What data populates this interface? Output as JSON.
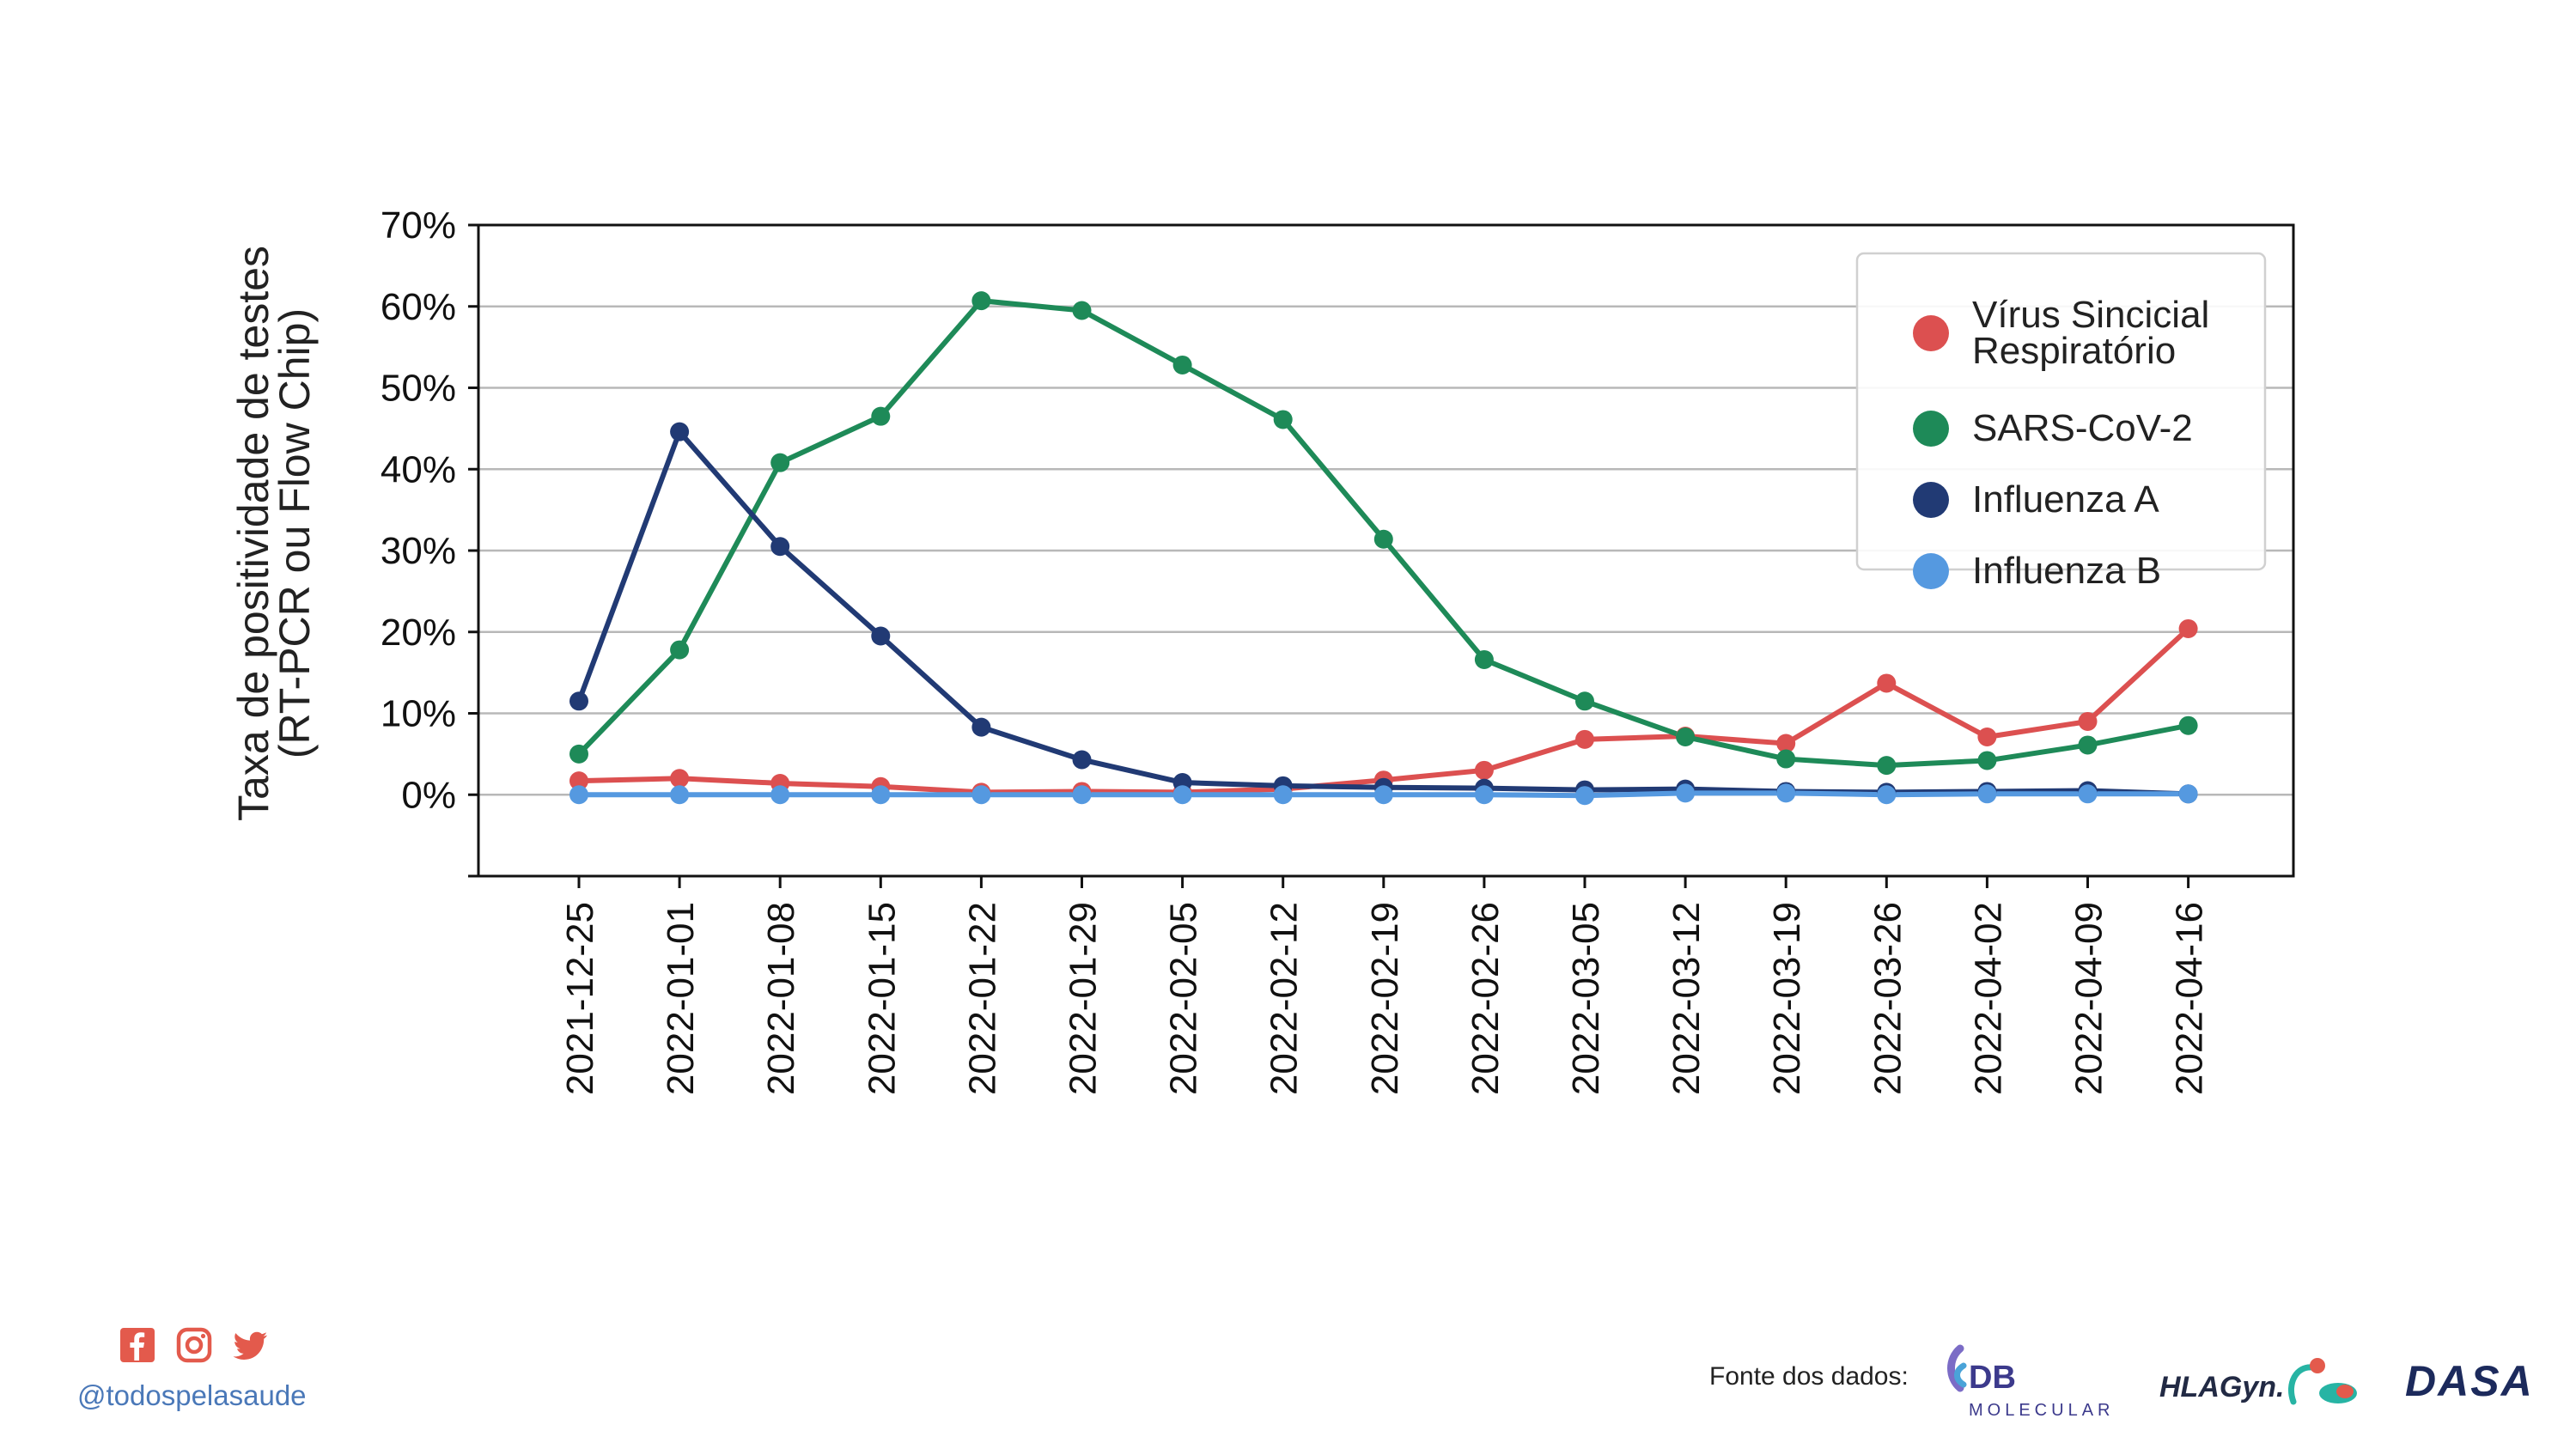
{
  "chart_data": {
    "type": "line",
    "title": "",
    "ylabel": [
      "Taxa de positividade de testes",
      "(RT-PCR ou Flow Chip)"
    ],
    "xlabel": "",
    "ylim": [
      -10,
      70
    ],
    "yticks": [
      0,
      10,
      20,
      30,
      40,
      50,
      60,
      70
    ],
    "ytick_labels": [
      "0%",
      "10%",
      "20%",
      "30%",
      "40%",
      "50%",
      "60%",
      "70%"
    ],
    "grid": "horizontal",
    "legend_position": "top-right",
    "categories": [
      "2021-12-25",
      "2022-01-01",
      "2022-01-08",
      "2022-01-15",
      "2022-01-22",
      "2022-01-29",
      "2022-02-05",
      "2022-02-12",
      "2022-02-19",
      "2022-02-26",
      "2022-03-05",
      "2022-03-12",
      "2022-03-19",
      "2022-03-26",
      "2022-04-02",
      "2022-04-09",
      "2022-04-16"
    ],
    "series": [
      {
        "name": "Vírus Sincicial Respiratório",
        "legend_lines": [
          "Vírus Sincicial",
          "Respiratório"
        ],
        "color": "#dc5050",
        "values": [
          1.7,
          2.0,
          1.4,
          1.0,
          0.3,
          0.4,
          0.3,
          0.7,
          1.8,
          3.0,
          6.8,
          7.2,
          6.3,
          13.7,
          7.1,
          9.0,
          20.4
        ]
      },
      {
        "name": "SARS-CoV-2",
        "legend_lines": [
          "SARS-CoV-2"
        ],
        "color": "#1e8a58",
        "values": [
          5.0,
          17.8,
          40.8,
          46.5,
          60.7,
          59.5,
          52.8,
          46.1,
          31.4,
          16.6,
          11.5,
          7.1,
          4.4,
          3.6,
          4.2,
          6.1,
          8.5
        ]
      },
      {
        "name": "Influenza A",
        "legend_lines": [
          "Influenza A"
        ],
        "color": "#213a74",
        "values": [
          11.5,
          44.6,
          30.5,
          19.5,
          8.3,
          4.3,
          1.5,
          1.1,
          0.9,
          0.8,
          0.6,
          0.7,
          0.4,
          0.3,
          0.4,
          0.5,
          0.1
        ]
      },
      {
        "name": "Influenza B",
        "legend_lines": [
          "Influenza B"
        ],
        "color": "#5599e0",
        "values": [
          0.0,
          0.0,
          0.0,
          0.0,
          0.0,
          0.0,
          0.0,
          0.0,
          0.0,
          0.0,
          -0.1,
          0.2,
          0.2,
          0.0,
          0.1,
          0.1,
          0.1
        ]
      }
    ]
  },
  "footer": {
    "social_icons": [
      "facebook-icon",
      "instagram-icon",
      "twitter-icon"
    ],
    "social_color": "#e35a4c",
    "handle": "@todospelasaude",
    "source_label": "Fonte dos dados:",
    "logos": {
      "db_molecular": {
        "main": "DB",
        "sub": "MOLECULAR"
      },
      "hlagyn": "HLAGyn.",
      "dasa": "DASA"
    }
  }
}
